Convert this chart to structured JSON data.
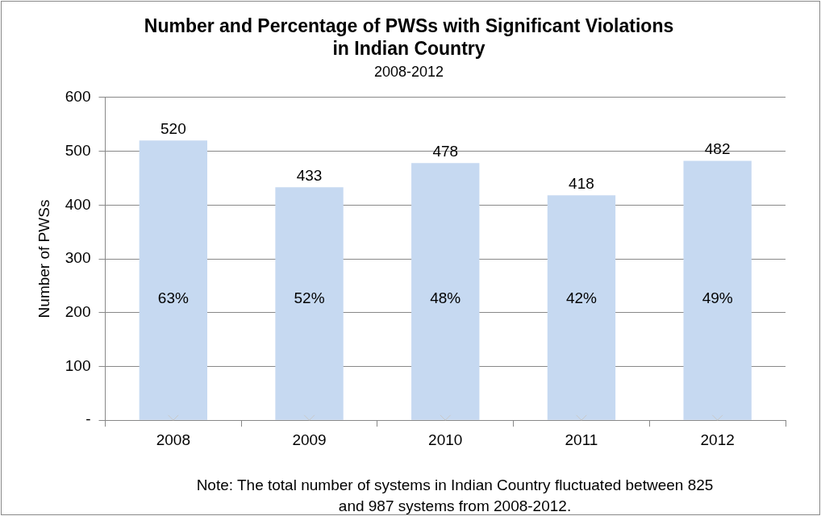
{
  "chart_data": {
    "type": "bar",
    "title": "Number and Percentage of PWSs with Significant Violations in Indian Country",
    "subtitle": "2008-2012",
    "ylabel": "Number of PWSs",
    "categories": [
      "2008",
      "2009",
      "2010",
      "2011",
      "2012"
    ],
    "series": [
      {
        "color": "#c6d9f1",
        "values": [
          520,
          433,
          478,
          418,
          482
        ],
        "value_labels": [
          "520",
          "433",
          "478",
          "418",
          "482"
        ]
      },
      {
        "type": "scatter",
        "color": "#c8c8c8",
        "marker": "cross",
        "values": [
          0,
          0,
          0,
          0,
          0
        ]
      }
    ],
    "ylim": [
      0,
      600
    ],
    "yticks": [
      {
        "value": 0,
        "label": "-"
      },
      100,
      200,
      300,
      400,
      500,
      600
    ],
    "grid": "y",
    "legend": false,
    "annotations": [
      "63%",
      "52%",
      "48%",
      "42%",
      "49%",
      "Note: The total number of systems in Indian Country fluctuated between 825 and 987 systems from 2008-2012."
    ]
  }
}
